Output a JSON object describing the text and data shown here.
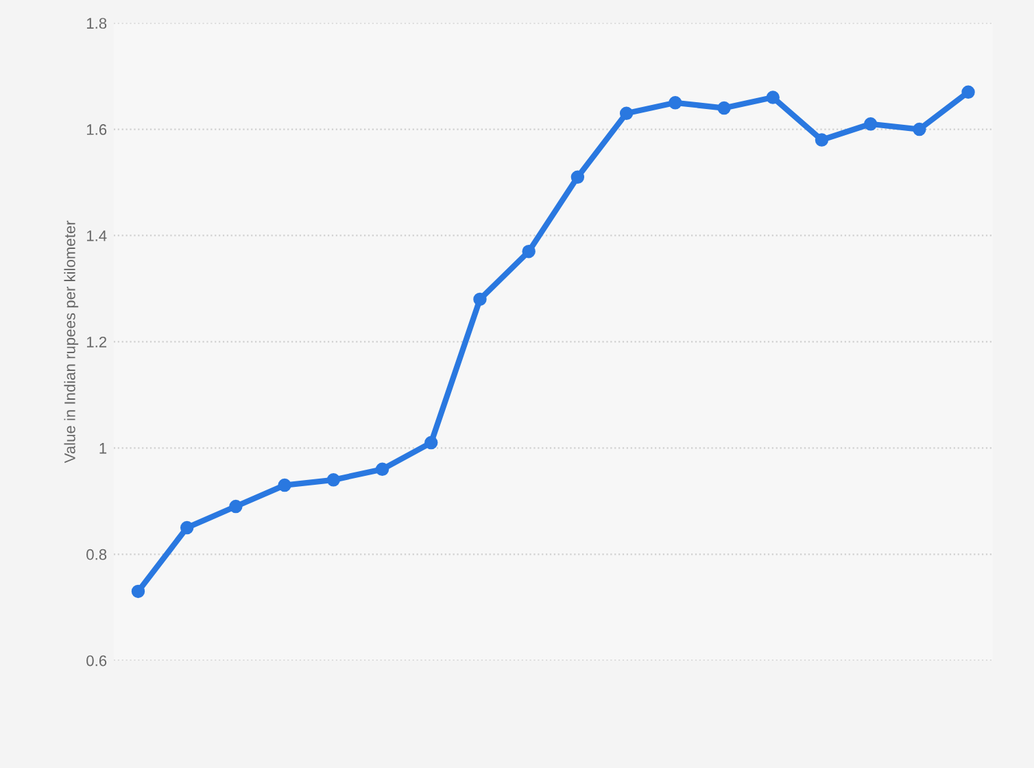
{
  "chart_data": {
    "type": "line",
    "ylabel": "Value in Indian rupees per kilometer",
    "categories": [
      null,
      null,
      null,
      null,
      null,
      null,
      null,
      null,
      null,
      null,
      null,
      null,
      null,
      null,
      null,
      null,
      null,
      null
    ],
    "series": [
      {
        "color": "#2a78e0",
        "values": [
          0.73,
          0.85,
          0.89,
          0.93,
          0.94,
          0.96,
          1.01,
          1.28,
          1.37,
          1.51,
          1.63,
          1.65,
          1.64,
          1.66,
          1.58,
          1.61,
          1.6,
          1.67
        ]
      }
    ],
    "ylim": [
      0.6,
      1.8
    ],
    "yticks": [
      0.6,
      0.8,
      1,
      1.2,
      1.4,
      1.6,
      1.8
    ],
    "grid": "y",
    "marker": "circle",
    "line_style": "solid",
    "legend": false,
    "tick_labels": "y"
  }
}
